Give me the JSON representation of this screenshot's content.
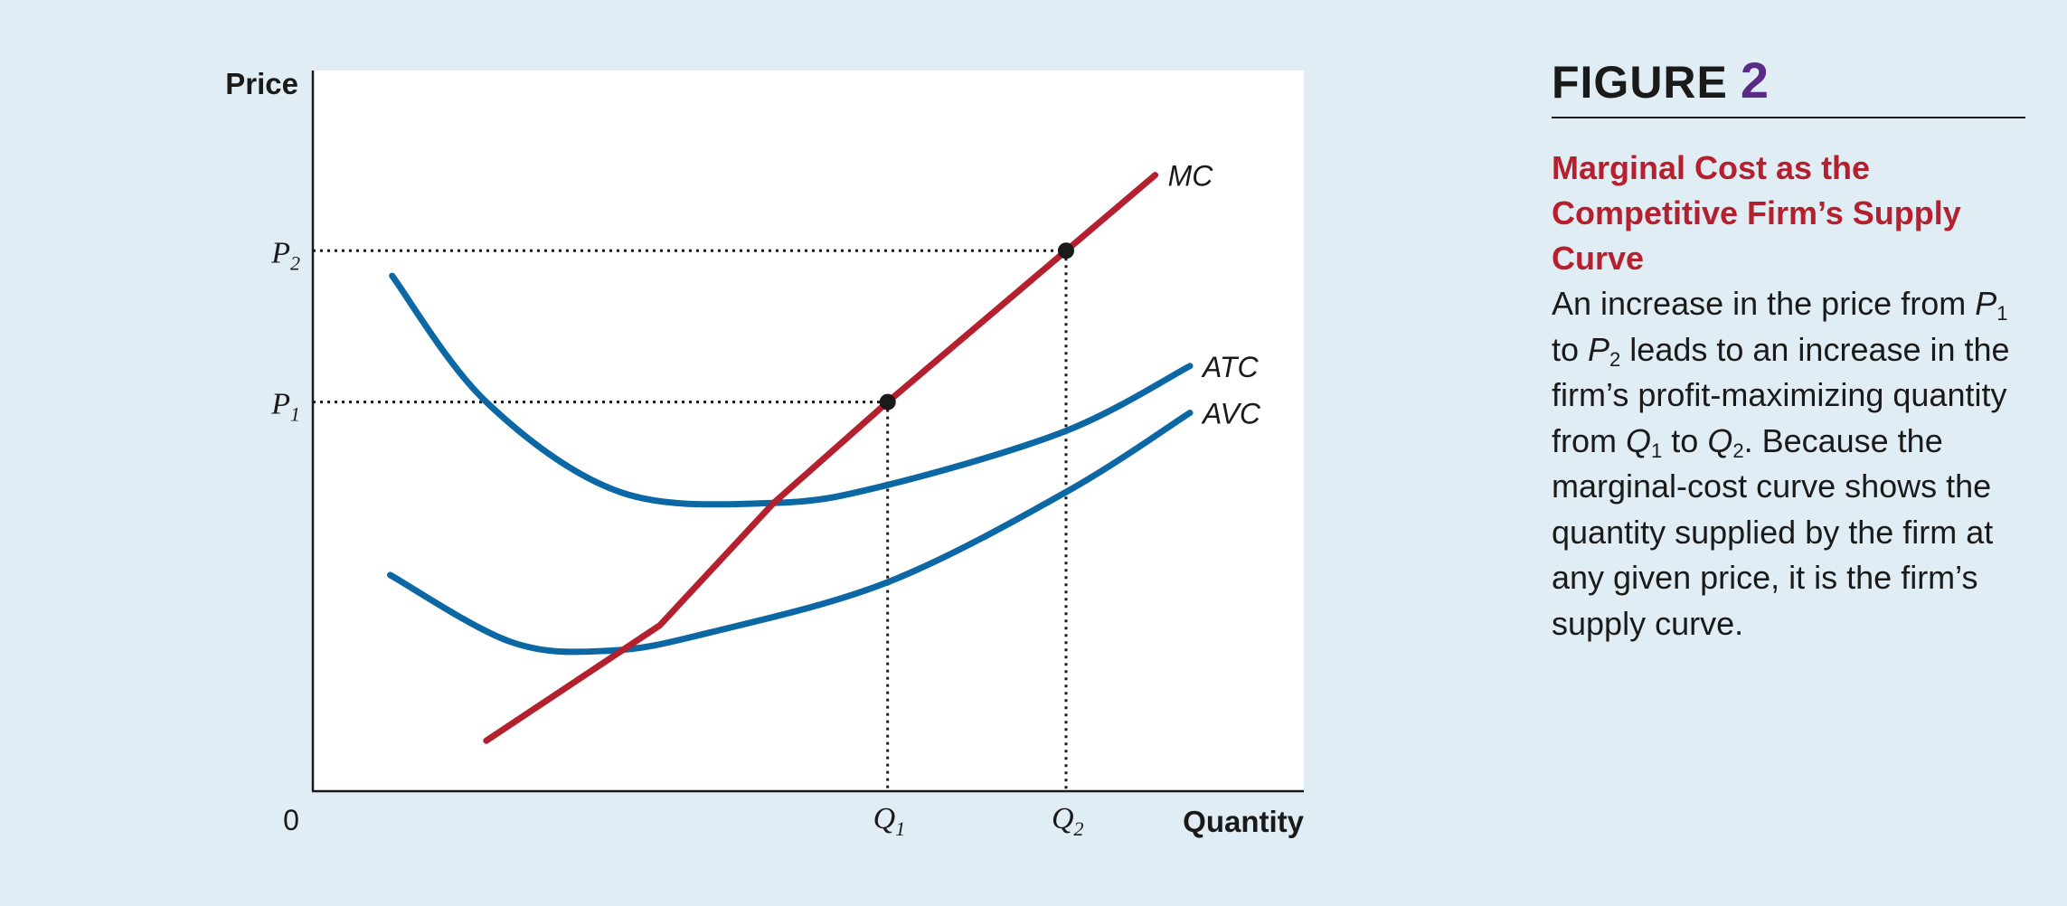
{
  "figure": {
    "label": "FIGURE",
    "number": "2",
    "title": "Marginal Cost as the Competitive Firm’s Supply Curve",
    "body": {
      "t1": "An increase in the price from ",
      "p1": "P",
      "p1_sub": "1",
      "t2": " to ",
      "p2": "P",
      "p2_sub": "2",
      "t3": " leads to an increase in the firm’s profit-maximizing quantity from ",
      "q1": "Q",
      "q1_sub": "1",
      "t4": " to ",
      "q2": "Q",
      "q2_sub": "2",
      "t5": ". Because the marginal-cost curve shows the quantity supplied by the firm at any given price, it is the firm’s supply curve."
    },
    "colors": {
      "title": "#b5202e",
      "number": "#5a2a86"
    }
  },
  "chart_data": {
    "type": "line",
    "xlabel": "Quantity",
    "ylabel": "Price",
    "origin_label": "0",
    "xlim": [
      0,
      100
    ],
    "ylim": [
      0,
      100
    ],
    "grid": false,
    "x_ticks": [
      {
        "label": "Q",
        "sub": "1",
        "value": 58
      },
      {
        "label": "Q",
        "sub": "2",
        "value": 76
      }
    ],
    "y_ticks": [
      {
        "label": "P",
        "sub": "1",
        "value": 54
      },
      {
        "label": "P",
        "sub": "2",
        "value": 75
      }
    ],
    "series": [
      {
        "name": "MC",
        "color": "#b5202e",
        "points": [
          [
            17.5,
            7
          ],
          [
            35,
            23
          ],
          [
            46.5,
            40
          ],
          [
            58,
            54
          ],
          [
            76,
            75
          ],
          [
            85,
            85.5
          ]
        ]
      },
      {
        "name": "ATC",
        "color": "#0b68a5",
        "points": [
          [
            8,
            71.5
          ],
          [
            17.5,
            54
          ],
          [
            31,
            41.5
          ],
          [
            46.5,
            40
          ],
          [
            58,
            42.5
          ],
          [
            76,
            50
          ],
          [
            88.5,
            59
          ]
        ]
      },
      {
        "name": "AVC",
        "color": "#0b68a5",
        "points": [
          [
            7.8,
            30
          ],
          [
            20,
            20.7
          ],
          [
            30,
            19.5
          ],
          [
            40,
            22
          ],
          [
            58,
            29
          ],
          [
            76,
            41.5
          ],
          [
            88.5,
            52.5
          ]
        ]
      }
    ],
    "markers": [
      {
        "x": 58,
        "y": 54
      },
      {
        "x": 76,
        "y": 75
      }
    ]
  }
}
